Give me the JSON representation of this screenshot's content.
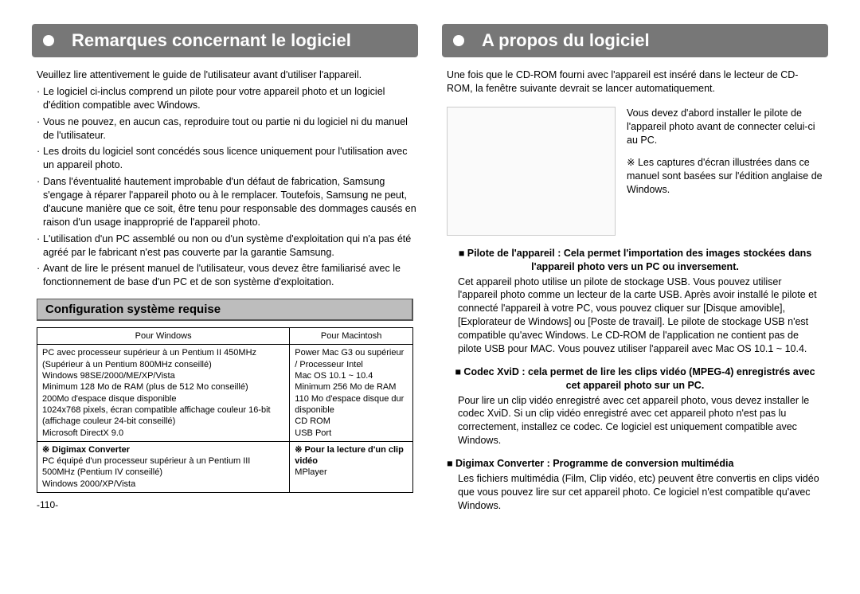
{
  "left": {
    "title": "Remarques concernant le logiciel",
    "intro": "Veuillez lire attentivement le guide de l'utilisateur avant d'utiliser l'appareil.",
    "bullets": [
      "Le logiciel ci-inclus comprend un pilote pour votre appareil photo et un logiciel d'édition compatible avec Windows.",
      "Vous ne pouvez, en aucun cas, reproduire tout ou partie ni du logiciel ni du manuel de l'utilisateur.",
      "Les droits du logiciel sont concédés sous licence uniquement pour l'utilisation avec un appareil photo.",
      "Dans l'éventualité hautement improbable d'un défaut de fabrication, Samsung s'engage à réparer l'appareil photo ou à le remplacer. Toutefois, Samsung ne peut, d'aucune manière que ce soit, être tenu pour responsable des dommages causés en raison d'un usage inapproprié de l'appareil photo.",
      "L'utilisation d'un PC assemblé ou non ou d'un système d'exploitation qui n'a pas été agréé par le fabricant n'est pas couverte par la garantie Samsung.",
      "Avant de lire le présent manuel de l'utilisateur, vous devez être familiarisé avec le fonctionnement de base d'un PC et de son système d'exploitation."
    ],
    "sysreq_heading": "Configuration système requise",
    "table": {
      "header_win": "Pour Windows",
      "header_mac": "Pour Macintosh",
      "row1_win": "PC avec processeur supérieur à un Pentium II 450MHz (Supérieur à un Pentium 800MHz conseillé)\nWindows 98SE/2000/ME/XP/Vista\nMinimum 128 Mo de RAM (plus de 512 Mo conseillé)\n200Mo d'espace disque disponible\n1024x768 pixels, écran compatible affichage couleur 16-bit (affichage couleur 24-bit conseillé)\nMicrosoft DirectX 9.0",
      "row1_mac": "Power Mac G3 ou supérieur / Processeur Intel\nMac OS 10.1 ~ 10.4\nMinimum 256 Mo de RAM\n110 Mo d'espace disque dur disponible\nCD ROM\nUSB Port",
      "row2_win_head": "※ Digimax Converter",
      "row2_mac_head": "※ Pour la lecture d'un clip vidéo",
      "row2_win": "PC équipé d'un processeur supérieur à un Pentium III 500MHz (Pentium IV conseillé)\nWindows 2000/XP/Vista",
      "row2_mac": "MPlayer"
    },
    "page_number": "-110-"
  },
  "right": {
    "title": "A propos du logiciel",
    "intro": "Une fois que le CD-ROM fourni avec l'appareil est inséré dans le lecteur de CD-ROM, la fenêtre suivante devrait se lancer automatiquement.",
    "block_p1": "Vous devez d'abord installer le pilote de l'appareil photo avant de connecter celui-ci au PC.",
    "block_p2": "※ Les captures d'écran illustrées dans ce manuel sont basées sur l'édition anglaise de Windows.",
    "items": [
      {
        "heading": "■ Pilote de l'appareil : Cela permet l'importation des images stockées dans l'appareil photo vers un PC ou inversement.",
        "body": "Cet appareil photo utilise un pilote de stockage USB. Vous pouvez utiliser l'appareil photo comme un lecteur de la carte USB. Après avoir installé le pilote et connecté l'appareil à votre PC, vous pouvez cliquer sur [Disque amovible], [Explorateur de Windows] ou [Poste de travail]. Le pilote de stockage USB n'est compatible qu'avec Windows. Le CD-ROM de l'application ne contient pas de pilote USB pour MAC. Vous pouvez utiliser l'appareil avec Mac OS 10.1 ~ 10.4."
      },
      {
        "heading": "■ Codec XviD : cela permet de lire les clips vidéo (MPEG-4) enregistrés avec cet appareil photo sur un PC.",
        "body": "Pour lire un clip vidéo enregistré avec cet appareil photo, vous devez installer le codec XviD. Si un clip vidéo enregistré avec cet appareil photo n'est pas lu correctement, installez ce codec. Ce logiciel est uniquement compatible avec Windows."
      },
      {
        "heading": "■ Digimax Converter : Programme de conversion multimédia",
        "body": "Les fichiers multimédia (Film, Clip vidéo, etc) peuvent être convertis en clips vidéo que vous pouvez lire sur cet appareil photo. Ce logiciel n'est compatible qu'avec Windows."
      }
    ]
  }
}
